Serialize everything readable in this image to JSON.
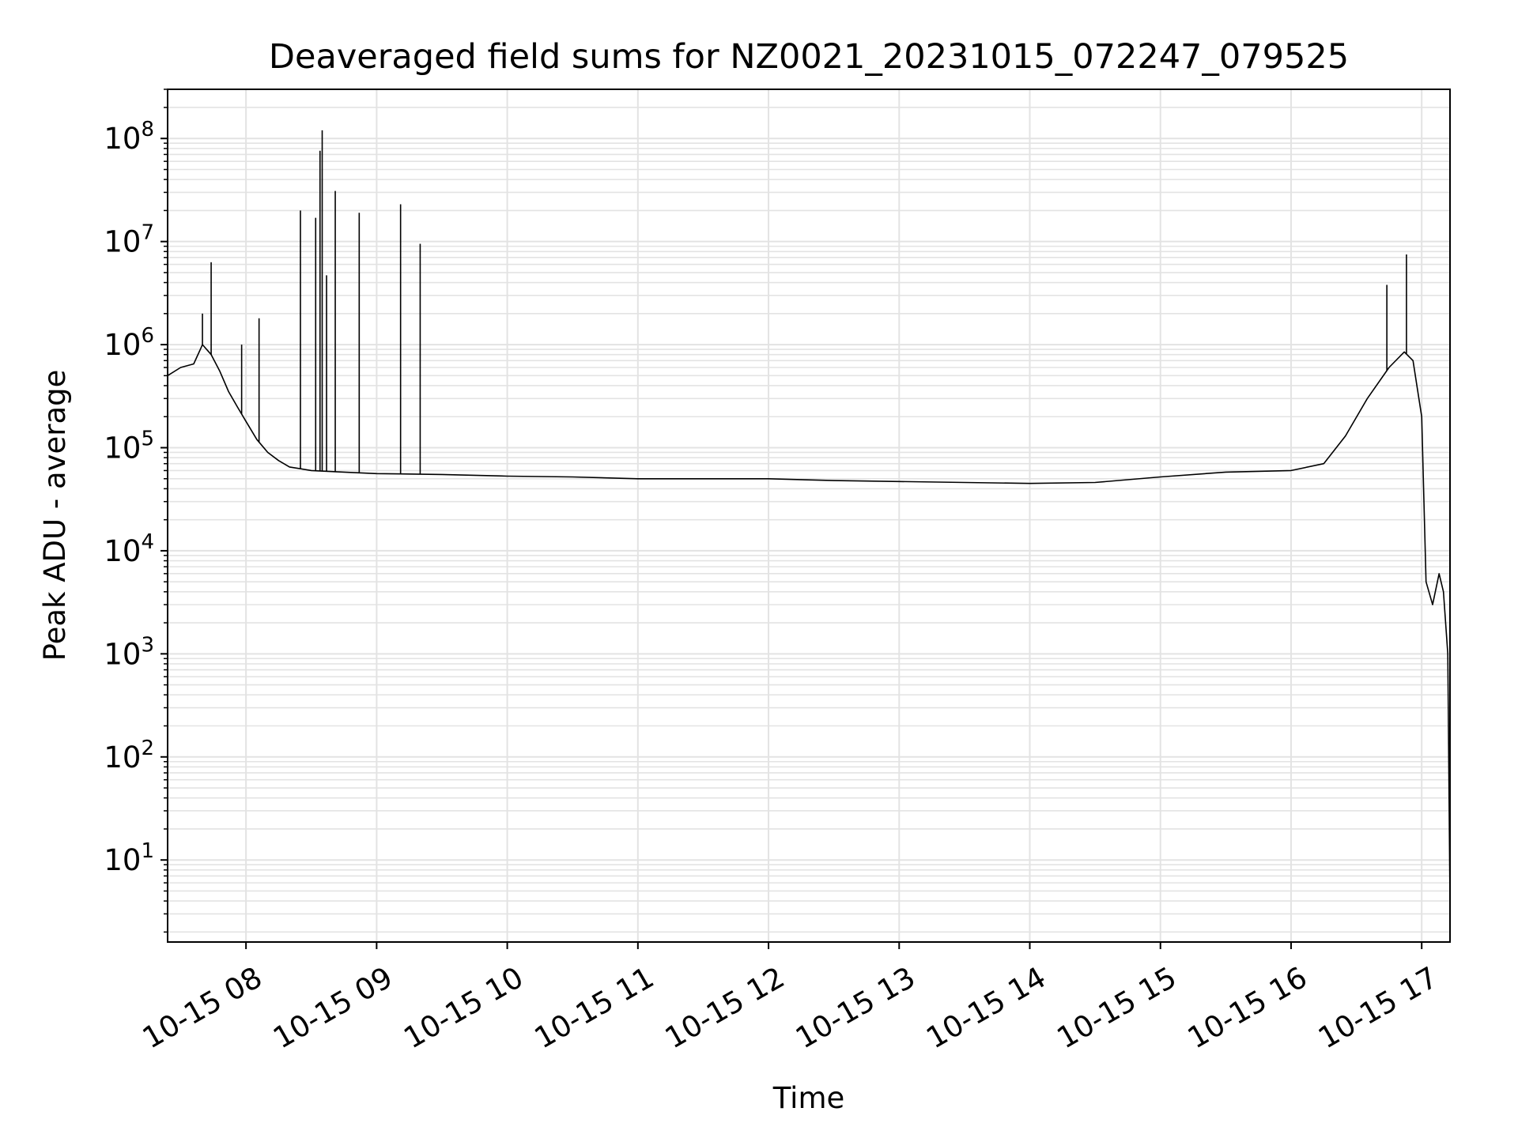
{
  "chart_data": {
    "type": "line",
    "title": "Deaveraged field sums for NZ0021_20231015_072247_079525",
    "xlabel": "Time",
    "ylabel": "Peak ADU - average",
    "yscale": "log",
    "ylim": [
      1.6,
      300000000
    ],
    "xlim": [
      "2023-10-15 07:24",
      "2023-10-15 17:13"
    ],
    "x_ticks": [
      "10-15 08",
      "10-15 09",
      "10-15 10",
      "10-15 11",
      "10-15 12",
      "10-15 13",
      "10-15 14",
      "10-15 15",
      "10-15 16",
      "10-15 17"
    ],
    "x_tick_values": [
      "2023-10-15 08:00",
      "2023-10-15 09:00",
      "2023-10-15 10:00",
      "2023-10-15 11:00",
      "2023-10-15 12:00",
      "2023-10-15 13:00",
      "2023-10-15 14:00",
      "2023-10-15 15:00",
      "2023-10-15 16:00",
      "2023-10-15 17:00"
    ],
    "y_ticks": [
      {
        "base": "10",
        "exp": "1",
        "value": 10
      },
      {
        "base": "10",
        "exp": "2",
        "value": 100
      },
      {
        "base": "10",
        "exp": "3",
        "value": 1000
      },
      {
        "base": "10",
        "exp": "4",
        "value": 10000
      },
      {
        "base": "10",
        "exp": "5",
        "value": 100000
      },
      {
        "base": "10",
        "exp": "6",
        "value": 1000000
      },
      {
        "base": "10",
        "exp": "7",
        "value": 10000000
      },
      {
        "base": "10",
        "exp": "8",
        "value": 100000000
      }
    ],
    "grid": true,
    "line_color": "#000000",
    "grid_color": "#e3e3e3",
    "series": [
      {
        "x": [
          "2023-10-15 07:24",
          "2023-10-15 07:30",
          "2023-10-15 07:36",
          "2023-10-15 07:40",
          "2023-10-15 07:44",
          "2023-10-15 07:48",
          "2023-10-15 07:52",
          "2023-10-15 07:56",
          "2023-10-15 08:00",
          "2023-10-15 08:05",
          "2023-10-15 08:10",
          "2023-10-15 08:15",
          "2023-10-15 08:20",
          "2023-10-15 08:30",
          "2023-10-15 08:45",
          "2023-10-15 09:00",
          "2023-10-15 09:30",
          "2023-10-15 10:00",
          "2023-10-15 10:30",
          "2023-10-15 11:00",
          "2023-10-15 11:30",
          "2023-10-15 12:00",
          "2023-10-15 12:30",
          "2023-10-15 13:00",
          "2023-10-15 13:30",
          "2023-10-15 14:00",
          "2023-10-15 14:30",
          "2023-10-15 15:00",
          "2023-10-15 15:30",
          "2023-10-15 16:00",
          "2023-10-15 16:15",
          "2023-10-15 16:25",
          "2023-10-15 16:35",
          "2023-10-15 16:45",
          "2023-10-15 16:52",
          "2023-10-15 16:56",
          "2023-10-15 17:00",
          "2023-10-15 17:02",
          "2023-10-15 17:05",
          "2023-10-15 17:08",
          "2023-10-15 17:10",
          "2023-10-15 17:12",
          "2023-10-15 17:13"
        ],
        "y": [
          500000,
          600000,
          650000,
          1000000,
          800000,
          550000,
          350000,
          250000,
          180000,
          120000,
          90000,
          75000,
          65000,
          60000,
          58000,
          56000,
          55000,
          53000,
          52000,
          50000,
          50000,
          50000,
          48000,
          47000,
          46000,
          45000,
          46000,
          52000,
          58000,
          60000,
          70000,
          130000,
          300000,
          600000,
          850000,
          700000,
          200000,
          5000,
          3000,
          6000,
          4000,
          1000,
          3.8
        ]
      }
    ],
    "spikes": [
      {
        "x": "2023-10-15 07:40",
        "y": 2000000
      },
      {
        "x": "2023-10-15 07:44",
        "y": 6300000
      },
      {
        "x": "2023-10-15 07:58",
        "y": 1000000
      },
      {
        "x": "2023-10-15 08:06",
        "y": 1800000
      },
      {
        "x": "2023-10-15 08:25",
        "y": 20000000
      },
      {
        "x": "2023-10-15 08:32",
        "y": 17000000
      },
      {
        "x": "2023-10-15 08:34",
        "y": 76000000
      },
      {
        "x": "2023-10-15 08:35",
        "y": 120000000
      },
      {
        "x": "2023-10-15 08:37",
        "y": 4700000
      },
      {
        "x": "2023-10-15 08:41",
        "y": 31000000
      },
      {
        "x": "2023-10-15 08:52",
        "y": 19000000
      },
      {
        "x": "2023-10-15 09:11",
        "y": 23000000
      },
      {
        "x": "2023-10-15 09:20",
        "y": 9500000
      },
      {
        "x": "2023-10-15 16:44",
        "y": 3800000
      },
      {
        "x": "2023-10-15 16:53",
        "y": 7500000
      }
    ]
  }
}
